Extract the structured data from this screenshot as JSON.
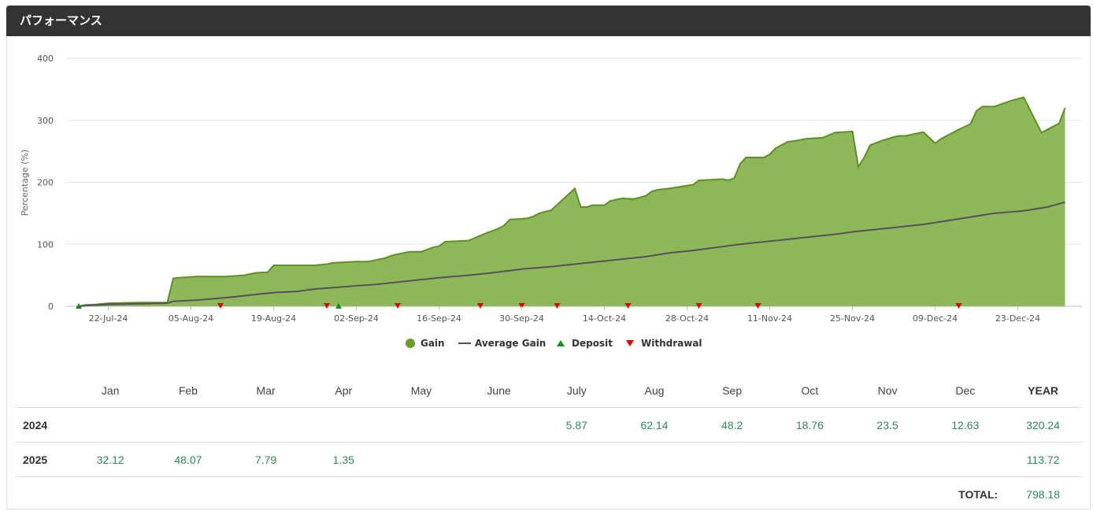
{
  "header": {
    "title": "パフォーマンス"
  },
  "chart_data": {
    "type": "area",
    "ylabel": "Percentage (%)",
    "ylim": [
      0,
      400
    ],
    "yticks": [
      0,
      100,
      200,
      300,
      400
    ],
    "xlim_days": [
      0,
      161
    ],
    "xtick_labels": [
      "22-Jul-24",
      "05-Aug-24",
      "19-Aug-24",
      "02-Sep-24",
      "16-Sep-24",
      "30-Sep-24",
      "14-Oct-24",
      "28-Oct-24",
      "11-Nov-24",
      "25-Nov-24",
      "09-Dec-24",
      "23-Dec-24"
    ],
    "xtick_days": [
      5,
      19,
      33,
      47,
      61,
      75,
      89,
      103,
      117,
      131,
      145,
      159
    ],
    "legend": [
      {
        "label": "Gain",
        "marker": "circle",
        "color": "#6a9a2a"
      },
      {
        "label": "Average Gain",
        "marker": "line",
        "color": "#5a4e5e"
      },
      {
        "label": "Deposit",
        "marker": "triangle-up",
        "color": "#1a8a1a"
      },
      {
        "label": "Withdrawal",
        "marker": "triangle-down",
        "color": "#e00000"
      }
    ],
    "series": [
      {
        "name": "Gain",
        "x": [
          0,
          1,
          3,
          5,
          10,
          15,
          16,
          17,
          20,
          25,
          28,
          30,
          32,
          33,
          37,
          40,
          42,
          43,
          47,
          49,
          50,
          52,
          53,
          56,
          57,
          58,
          60,
          61,
          62,
          66,
          67,
          69,
          71,
          72,
          73,
          75,
          76,
          77,
          78,
          80,
          84,
          85,
          86,
          87,
          88,
          89,
          90,
          92,
          94,
          96,
          97,
          98,
          100,
          104,
          105,
          107,
          109,
          110,
          111,
          112,
          113,
          115,
          116,
          117,
          118,
          120,
          122,
          123,
          126,
          128,
          131,
          132,
          133,
          134,
          136,
          137,
          138,
          139,
          140,
          143,
          145,
          146,
          147,
          148,
          149,
          151,
          152,
          153,
          155,
          158,
          160,
          163,
          166,
          167
        ],
        "values": [
          0,
          2,
          3,
          5,
          6,
          6,
          45,
          46,
          48,
          48,
          50,
          54,
          55,
          66,
          66,
          66,
          68,
          70,
          72,
          72,
          74,
          78,
          82,
          88,
          88,
          88,
          95,
          97,
          104,
          106,
          110,
          118,
          125,
          130,
          140,
          141,
          142,
          145,
          150,
          155,
          190,
          160,
          160,
          163,
          163,
          163,
          170,
          174,
          173,
          178,
          185,
          188,
          190,
          196,
          203,
          204,
          205,
          203,
          207,
          230,
          240,
          240,
          240,
          245,
          255,
          265,
          268,
          270,
          272,
          280,
          282,
          225,
          240,
          260,
          267,
          270,
          273,
          275,
          275,
          281,
          263,
          270,
          275,
          280,
          285,
          294,
          315,
          322,
          322,
          332,
          337,
          280,
          295,
          320
        ],
        "color": "#8cb85a"
      },
      {
        "name": "Average Gain",
        "x": [
          0,
          1,
          5,
          10,
          15,
          16,
          20,
          25,
          28,
          30,
          33,
          37,
          40,
          43,
          47,
          50,
          53,
          57,
          61,
          66,
          70,
          75,
          80,
          84,
          88,
          92,
          96,
          100,
          104,
          108,
          112,
          117,
          120,
          124,
          128,
          131,
          135,
          139,
          143,
          147,
          151,
          155,
          160,
          164,
          167
        ],
        "values": [
          0,
          1,
          3,
          4,
          5,
          8,
          10,
          14,
          17,
          19,
          22,
          24,
          28,
          30,
          33,
          35,
          38,
          42,
          46,
          50,
          54,
          60,
          64,
          68,
          72,
          76,
          80,
          86,
          90,
          95,
          100,
          105,
          108,
          112,
          116,
          120,
          124,
          128,
          132,
          138,
          144,
          150,
          154,
          160,
          168
        ],
        "color": "#5a4e5e"
      }
    ],
    "deposits_days": [
      0,
      44
    ],
    "withdrawals_days": [
      24,
      42,
      54,
      68,
      75,
      81,
      93,
      105,
      115,
      149
    ]
  },
  "table": {
    "columns": [
      "",
      "Jan",
      "Feb",
      "Mar",
      "Apr",
      "May",
      "June",
      "July",
      "Aug",
      "Sep",
      "Oct",
      "Nov",
      "Dec",
      "YEAR"
    ],
    "rows": [
      {
        "label": "2024",
        "values": [
          "",
          "",
          "",
          "",
          "",
          "",
          "5.87",
          "62.14",
          "48.2",
          "18.76",
          "23.5",
          "12.63",
          "320.24"
        ]
      },
      {
        "label": "2025",
        "values": [
          "32.12",
          "48.07",
          "7.79",
          "1.35",
          "",
          "",
          "",
          "",
          "",
          "",
          "",
          "",
          "113.72"
        ]
      }
    ],
    "total_label": "TOTAL:",
    "total_value": "798.18"
  }
}
